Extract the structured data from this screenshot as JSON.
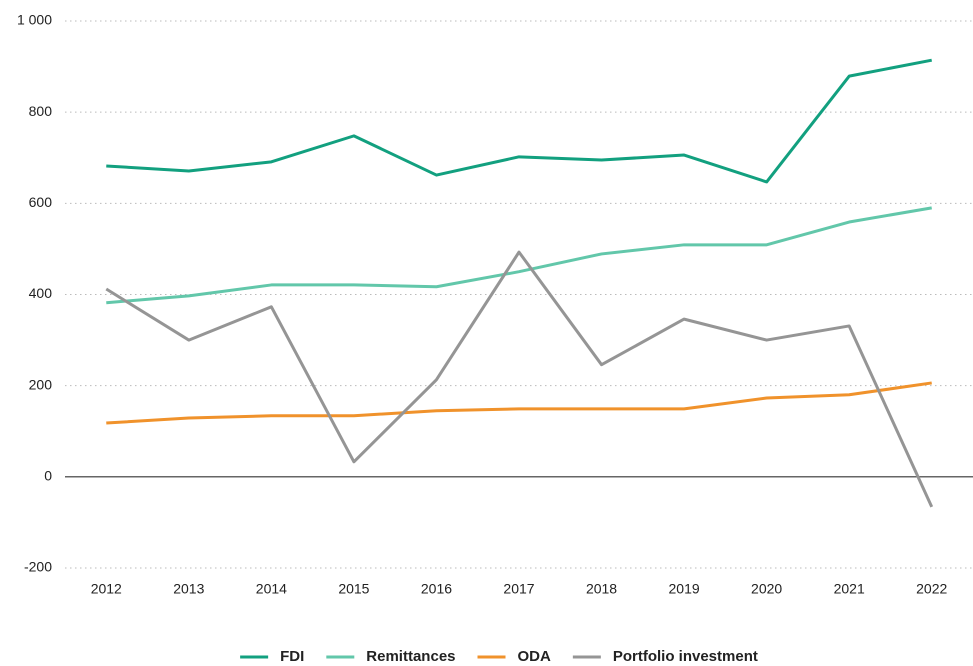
{
  "chart_data": {
    "type": "line",
    "categories": [
      "2012",
      "2013",
      "2014",
      "2015",
      "2016",
      "2017",
      "2018",
      "2019",
      "2020",
      "2021",
      "2022"
    ],
    "series": [
      {
        "name": "FDI",
        "color": "#12a07f",
        "values": [
          682,
          671,
          691,
          748,
          662,
          702,
          695,
          706,
          647,
          879,
          914
        ]
      },
      {
        "name": "Remittances",
        "color": "#62c7aa",
        "values": [
          382,
          397,
          421,
          421,
          417,
          450,
          489,
          509,
          509,
          559,
          590
        ]
      },
      {
        "name": "ODA",
        "color": "#f0922b",
        "values": [
          118,
          129,
          134,
          134,
          145,
          149,
          149,
          149,
          173,
          180,
          206
        ]
      },
      {
        "name": "Portfolio investment",
        "color": "#959595",
        "values": [
          412,
          300,
          373,
          33,
          213,
          493,
          246,
          346,
          300,
          331,
          -66
        ]
      }
    ],
    "ylim": [
      -200,
      1000
    ],
    "yticks": [
      -200,
      0,
      200,
      400,
      600,
      800,
      {
        "value": 1000,
        "label": "1 000"
      }
    ],
    "grid": true,
    "legend": "bottom"
  }
}
